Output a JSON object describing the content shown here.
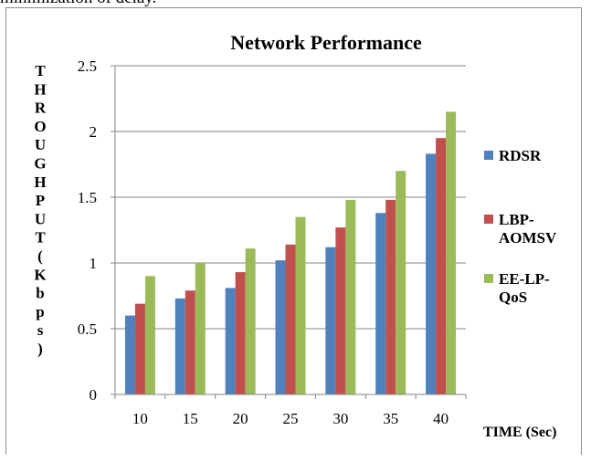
{
  "context_text": "minimization of delay.",
  "chart_data": {
    "type": "bar",
    "title": "Network Performance",
    "xlabel": "TIME (Sec)",
    "ylabel": "THROUGHPUT(Kbps)",
    "categories": [
      "10",
      "15",
      "20",
      "25",
      "30",
      "35",
      "40"
    ],
    "ylim": [
      0,
      2.5
    ],
    "yticks": [
      "0",
      "0.5",
      "1",
      "1.5",
      "2",
      "2.5"
    ],
    "grid": true,
    "legend_position": "right",
    "series": [
      {
        "name": "RDSR",
        "color": "#4f81bd",
        "values": [
          0.6,
          0.73,
          0.81,
          1.02,
          1.12,
          1.38,
          1.83
        ]
      },
      {
        "name": "LBP-AOMSV",
        "color": "#c0504d",
        "values": [
          0.69,
          0.79,
          0.93,
          1.14,
          1.27,
          1.48,
          1.95
        ]
      },
      {
        "name": "EE-LP-QoS",
        "color": "#9bbb59",
        "values": [
          0.9,
          1.0,
          1.11,
          1.35,
          1.48,
          1.7,
          2.15
        ]
      }
    ]
  }
}
